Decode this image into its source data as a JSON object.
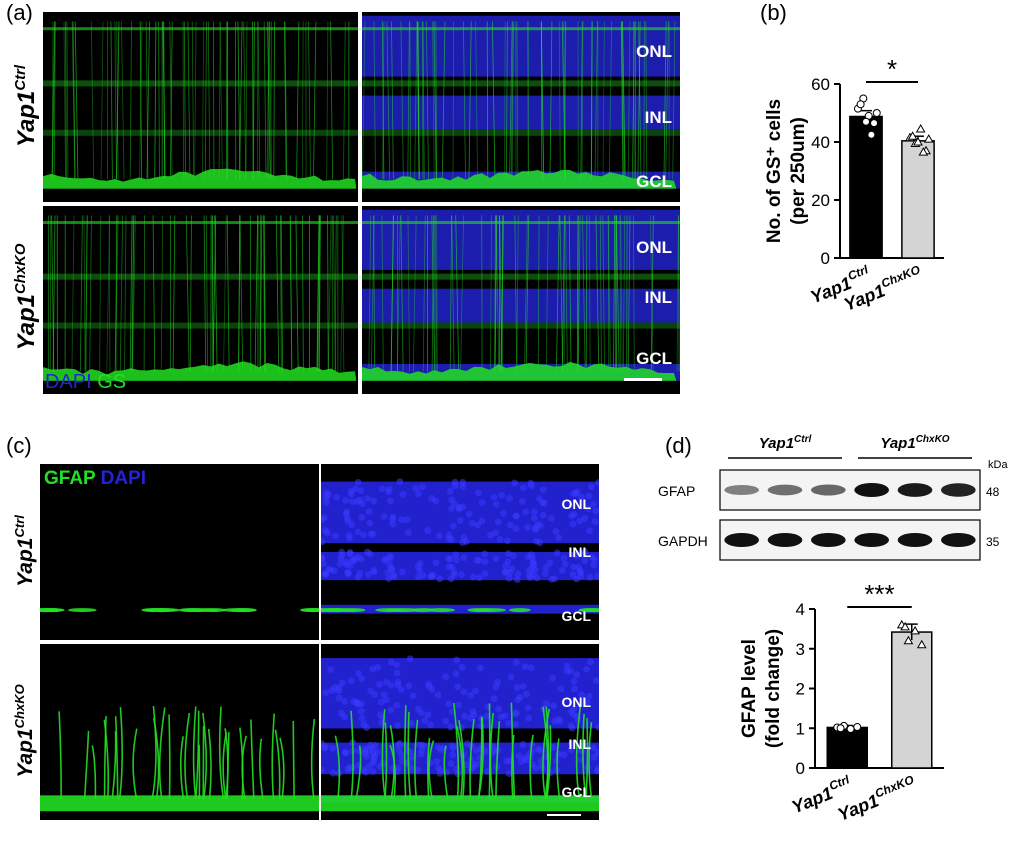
{
  "panel_labels": [
    "(a)",
    "(b)",
    "(c)",
    "(d)"
  ],
  "panel_a": {
    "row_labels": [
      {
        "base": "Yap1",
        "sup": "Ctrl"
      },
      {
        "base": "Yap1",
        "sup": "ChxKO"
      }
    ],
    "layers": [
      "ONL",
      "INL",
      "GCL"
    ],
    "stain_blue": "DAPI",
    "stain_green": "GS"
  },
  "panel_c": {
    "row_labels": [
      {
        "base": "Yap1",
        "sup": "Ctrl"
      },
      {
        "base": "Yap1",
        "sup": "ChxKO"
      }
    ],
    "layers": [
      "ONL",
      "INL",
      "GCL"
    ],
    "stain_green": "GFAP",
    "stain_blue": "DAPI"
  },
  "panel_d_blot": {
    "groups": [
      {
        "base": "Yap1",
        "sup": "Ctrl"
      },
      {
        "base": "Yap1",
        "sup": "ChxKO"
      }
    ],
    "unit": "kDa",
    "rows": [
      {
        "protein": "GFAP",
        "mw": "48",
        "intensities": [
          0.35,
          0.45,
          0.5,
          1.0,
          0.95,
          0.9
        ]
      },
      {
        "protein": "GAPDH",
        "mw": "35",
        "intensities": [
          1.0,
          1.0,
          1.0,
          1.0,
          1.0,
          1.0
        ]
      }
    ]
  },
  "colors": {
    "green": "#22e022",
    "blue": "#2323d8",
    "bar_ctrl": "#000000",
    "bar_ko": "#d4d4d4"
  },
  "chart_data": [
    {
      "type": "bar",
      "panel": "(b)",
      "categories": [
        {
          "base": "Yap1",
          "sup": "Ctrl"
        },
        {
          "base": "Yap1",
          "sup": "ChxKO"
        }
      ],
      "values": [
        48.8,
        40.4
      ],
      "errors": [
        2.0,
        1.6
      ],
      "points": [
        [
          51.5,
          55.0,
          49.0,
          46.5,
          53.0,
          47.0,
          42.5,
          50.0
        ],
        [
          41.5,
          39.5,
          44.5,
          37.0,
          42.0,
          40.0,
          36.5,
          41.0
        ]
      ],
      "ylabel_lines": [
        "No. of GS⁺ cells",
        "(per 250um)"
      ],
      "ylim": [
        0,
        60
      ],
      "yticks": [
        0,
        20,
        40,
        60
      ],
      "significance": "*"
    },
    {
      "type": "bar",
      "panel": "(d)",
      "categories": [
        {
          "base": "Yap1",
          "sup": "Ctrl"
        },
        {
          "base": "Yap1",
          "sup": "ChxKO"
        }
      ],
      "values": [
        1.02,
        3.42
      ],
      "errors": [
        0.05,
        0.2
      ],
      "points": [
        [
          1.02,
          1.06,
          0.98,
          1.03,
          1.0
        ],
        [
          3.6,
          3.2,
          3.45,
          3.1,
          3.55
        ]
      ],
      "ylabel_lines": [
        "GFAP level",
        "(fold change)"
      ],
      "ylim": [
        0,
        4
      ],
      "yticks": [
        0,
        1,
        2,
        3,
        4
      ],
      "significance": "***"
    }
  ]
}
